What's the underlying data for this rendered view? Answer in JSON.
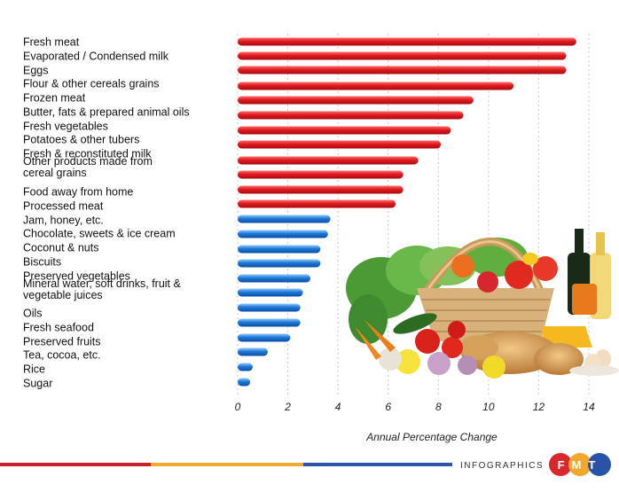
{
  "chart_data": {
    "type": "bar",
    "orientation": "horizontal",
    "categories": [
      "Fresh meat",
      "Evaporated / Condensed milk",
      "Eggs",
      "Flour & other cereals grains",
      "Frozen meat",
      "Butter, fats & prepared animal oils",
      "Fresh vegetables",
      "Potatoes & other tubers",
      "Fresh & reconstituted milk",
      "Other products made from cereal grains",
      "Food away from home",
      "Processed meat",
      "Jam, honey, etc.",
      "Chocolate, sweets & ice cream",
      "Coconut & nuts",
      "Biscuits",
      "Preserved vegetables",
      "Mineral water, soft drinks, fruit & vegetable juices",
      "Oils",
      "Fresh seafood",
      "Preserved fruits",
      "Tea, cocoa, etc.",
      "Rice",
      "Sugar"
    ],
    "label_lines": [
      [
        "Fresh meat"
      ],
      [
        "Evaporated / Condensed milk"
      ],
      [
        "Eggs"
      ],
      [
        "Flour & other cereals grains"
      ],
      [
        "Frozen meat"
      ],
      [
        "Butter, fats & prepared animal oils"
      ],
      [
        "Fresh vegetables"
      ],
      [
        "Potatoes & other tubers"
      ],
      [
        "Fresh & reconstituted milk"
      ],
      [
        "Other products made from",
        "cereal grains"
      ],
      [
        "Food away from home"
      ],
      [
        "Processed meat"
      ],
      [
        "Jam, honey, etc."
      ],
      [
        "Chocolate, sweets & ice cream"
      ],
      [
        "Coconut & nuts"
      ],
      [
        "Biscuits"
      ],
      [
        "Preserved vegetables"
      ],
      [
        "Mineral water, soft drinks, fruit &",
        "vegetable juices"
      ],
      [
        "Oils"
      ],
      [
        "Fresh seafood"
      ],
      [
        "Preserved fruits"
      ],
      [
        "Tea, cocoa, etc."
      ],
      [
        "Rice"
      ],
      [
        "Sugar"
      ]
    ],
    "values": [
      13.5,
      13.1,
      13.1,
      11.0,
      9.4,
      9.0,
      8.5,
      8.1,
      7.2,
      6.6,
      6.6,
      6.3,
      3.7,
      3.6,
      3.3,
      3.3,
      2.9,
      2.6,
      2.5,
      2.5,
      2.1,
      1.2,
      0.6,
      0.5
    ],
    "bar_colors": [
      "red",
      "red",
      "red",
      "red",
      "red",
      "red",
      "red",
      "red",
      "red",
      "red",
      "red",
      "red",
      "blue",
      "blue",
      "blue",
      "blue",
      "blue",
      "blue",
      "blue",
      "blue",
      "blue",
      "blue",
      "blue",
      "blue"
    ],
    "xlim": [
      0,
      14
    ],
    "xticks": [
      "0",
      "2",
      "4",
      "6",
      "8",
      "10",
      "12",
      "14"
    ],
    "xlabel": "Annual Percentage Change",
    "grid": "vertical dashed",
    "colors": {
      "red": "#d9141b",
      "blue": "#1f78d6"
    }
  },
  "footer": {
    "label": "INFOGRAPHICS",
    "logo": "FMT",
    "stripe_colors": [
      "#c8202a",
      "#f0a830",
      "#2c55a8"
    ]
  },
  "illustration": "basket-of-groceries-image"
}
